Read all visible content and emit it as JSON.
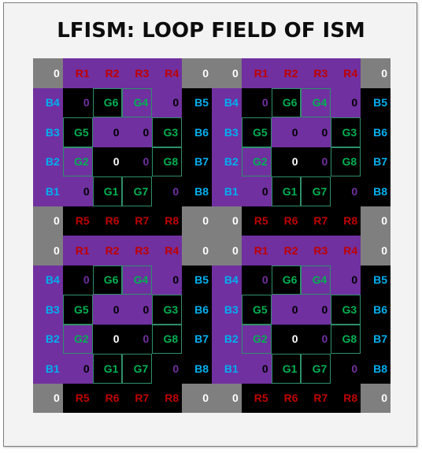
{
  "title": "LFISM: LOOP FIELD OF ISM",
  "colors": {
    "gray": "#7f7f7f",
    "purple": "#7030a0",
    "black": "#000000",
    "red": "#c00000",
    "green": "#00b050",
    "blue": "#00b0f0",
    "white": "#ffffff",
    "purple_text": "#7030a0"
  },
  "grid": {
    "rows": [
      [
        [
          "0",
          "gray",
          "white"
        ],
        [
          "R1",
          "purple",
          "red"
        ],
        [
          "R2",
          "purple",
          "red"
        ],
        [
          "R3",
          "purple",
          "red"
        ],
        [
          "R4",
          "purple",
          "red"
        ],
        [
          "0",
          "gray",
          "white"
        ],
        [
          "0",
          "gray",
          "white"
        ],
        [
          "R1",
          "purple",
          "red"
        ],
        [
          "R2",
          "purple",
          "red"
        ],
        [
          "R3",
          "purple",
          "red"
        ],
        [
          "R4",
          "purple",
          "red"
        ],
        [
          "0",
          "gray",
          "white"
        ]
      ],
      [
        [
          "B4",
          "purple",
          "blue"
        ],
        [
          "0",
          "black",
          "purple_text"
        ],
        [
          "G6",
          "black",
          "green"
        ],
        [
          "G4",
          "purple",
          "green"
        ],
        [
          "0",
          "purple",
          "black"
        ],
        [
          "B5",
          "black",
          "blue"
        ],
        [
          "B4",
          "purple",
          "blue"
        ],
        [
          "0",
          "black",
          "purple_text"
        ],
        [
          "G6",
          "black",
          "green"
        ],
        [
          "G4",
          "purple",
          "green"
        ],
        [
          "0",
          "purple",
          "black"
        ],
        [
          "B5",
          "black",
          "blue"
        ]
      ],
      [
        [
          "B3",
          "purple",
          "blue"
        ],
        [
          "G5",
          "black",
          "green"
        ],
        [
          "0",
          "purple",
          "black"
        ],
        [
          "0",
          "purple",
          "black"
        ],
        [
          "G3",
          "black",
          "green"
        ],
        [
          "B6",
          "black",
          "blue"
        ],
        [
          "B3",
          "purple",
          "blue"
        ],
        [
          "G5",
          "black",
          "green"
        ],
        [
          "0",
          "purple",
          "black"
        ],
        [
          "0",
          "purple",
          "black"
        ],
        [
          "G3",
          "black",
          "green"
        ],
        [
          "B6",
          "black",
          "blue"
        ]
      ],
      [
        [
          "B2",
          "purple",
          "blue"
        ],
        [
          "G2",
          "purple",
          "green"
        ],
        [
          "0",
          "black",
          "white"
        ],
        [
          "0",
          "black",
          "purple_text"
        ],
        [
          "G8",
          "black",
          "green"
        ],
        [
          "B7",
          "black",
          "blue"
        ],
        [
          "B2",
          "purple",
          "blue"
        ],
        [
          "G2",
          "purple",
          "green"
        ],
        [
          "0",
          "black",
          "white"
        ],
        [
          "0",
          "black",
          "purple_text"
        ],
        [
          "G8",
          "black",
          "green"
        ],
        [
          "B7",
          "black",
          "blue"
        ]
      ],
      [
        [
          "B1",
          "purple",
          "blue"
        ],
        [
          "0",
          "purple",
          "black"
        ],
        [
          "G1",
          "black",
          "green"
        ],
        [
          "G7",
          "black",
          "green"
        ],
        [
          "0",
          "black",
          "purple_text"
        ],
        [
          "B8",
          "black",
          "blue"
        ],
        [
          "B1",
          "purple",
          "blue"
        ],
        [
          "0",
          "purple",
          "black"
        ],
        [
          "G1",
          "black",
          "green"
        ],
        [
          "G7",
          "black",
          "green"
        ],
        [
          "0",
          "black",
          "purple_text"
        ],
        [
          "B8",
          "black",
          "blue"
        ]
      ],
      [
        [
          "0",
          "gray",
          "white"
        ],
        [
          "R5",
          "black",
          "red"
        ],
        [
          "R6",
          "black",
          "red"
        ],
        [
          "R7",
          "black",
          "red"
        ],
        [
          "R8",
          "black",
          "red"
        ],
        [
          "0",
          "gray",
          "white"
        ],
        [
          "0",
          "gray",
          "white"
        ],
        [
          "R5",
          "black",
          "red"
        ],
        [
          "R6",
          "black",
          "red"
        ],
        [
          "R7",
          "black",
          "red"
        ],
        [
          "R8",
          "black",
          "red"
        ],
        [
          "0",
          "gray",
          "white"
        ]
      ],
      [
        [
          "0",
          "gray",
          "white"
        ],
        [
          "R1",
          "purple",
          "red"
        ],
        [
          "R2",
          "purple",
          "red"
        ],
        [
          "R3",
          "purple",
          "red"
        ],
        [
          "R4",
          "purple",
          "red"
        ],
        [
          "0",
          "gray",
          "white"
        ],
        [
          "0",
          "gray",
          "white"
        ],
        [
          "R1",
          "purple",
          "red"
        ],
        [
          "R2",
          "purple",
          "red"
        ],
        [
          "R3",
          "purple",
          "red"
        ],
        [
          "R4",
          "purple",
          "red"
        ],
        [
          "0",
          "gray",
          "white"
        ]
      ],
      [
        [
          "B4",
          "purple",
          "blue"
        ],
        [
          "0",
          "black",
          "purple_text"
        ],
        [
          "G6",
          "black",
          "green"
        ],
        [
          "G4",
          "purple",
          "green"
        ],
        [
          "0",
          "purple",
          "black"
        ],
        [
          "B5",
          "black",
          "blue"
        ],
        [
          "B4",
          "purple",
          "blue"
        ],
        [
          "0",
          "black",
          "purple_text"
        ],
        [
          "G6",
          "black",
          "green"
        ],
        [
          "G4",
          "purple",
          "green"
        ],
        [
          "0",
          "purple",
          "black"
        ],
        [
          "B5",
          "black",
          "blue"
        ]
      ],
      [
        [
          "B3",
          "purple",
          "blue"
        ],
        [
          "G5",
          "black",
          "green"
        ],
        [
          "0",
          "purple",
          "black"
        ],
        [
          "0",
          "purple",
          "black"
        ],
        [
          "G3",
          "black",
          "green"
        ],
        [
          "B6",
          "black",
          "blue"
        ],
        [
          "B3",
          "purple",
          "blue"
        ],
        [
          "G5",
          "black",
          "green"
        ],
        [
          "0",
          "purple",
          "black"
        ],
        [
          "0",
          "purple",
          "black"
        ],
        [
          "G3",
          "black",
          "green"
        ],
        [
          "B6",
          "black",
          "blue"
        ]
      ],
      [
        [
          "B2",
          "purple",
          "blue"
        ],
        [
          "G2",
          "purple",
          "green"
        ],
        [
          "0",
          "black",
          "white"
        ],
        [
          "0",
          "black",
          "purple_text"
        ],
        [
          "G8",
          "black",
          "green"
        ],
        [
          "B7",
          "black",
          "blue"
        ],
        [
          "B2",
          "purple",
          "blue"
        ],
        [
          "G2",
          "purple",
          "green"
        ],
        [
          "0",
          "black",
          "white"
        ],
        [
          "0",
          "black",
          "purple_text"
        ],
        [
          "G8",
          "black",
          "green"
        ],
        [
          "B7",
          "black",
          "blue"
        ]
      ],
      [
        [
          "B1",
          "purple",
          "blue"
        ],
        [
          "0",
          "purple",
          "black"
        ],
        [
          "G1",
          "black",
          "green"
        ],
        [
          "G7",
          "black",
          "green"
        ],
        [
          "0",
          "black",
          "purple_text"
        ],
        [
          "B8",
          "black",
          "blue"
        ],
        [
          "B1",
          "purple",
          "blue"
        ],
        [
          "0",
          "purple",
          "black"
        ],
        [
          "G1",
          "black",
          "green"
        ],
        [
          "G7",
          "black",
          "green"
        ],
        [
          "0",
          "black",
          "purple_text"
        ],
        [
          "B8",
          "black",
          "blue"
        ]
      ],
      [
        [
          "0",
          "gray",
          "white"
        ],
        [
          "R5",
          "black",
          "red"
        ],
        [
          "R6",
          "black",
          "red"
        ],
        [
          "R7",
          "black",
          "red"
        ],
        [
          "R8",
          "black",
          "red"
        ],
        [
          "0",
          "gray",
          "white"
        ],
        [
          "0",
          "gray",
          "white"
        ],
        [
          "R5",
          "black",
          "red"
        ],
        [
          "R6",
          "black",
          "red"
        ],
        [
          "R7",
          "black",
          "red"
        ],
        [
          "R8",
          "black",
          "red"
        ],
        [
          "0",
          "gray",
          "white"
        ]
      ]
    ]
  }
}
